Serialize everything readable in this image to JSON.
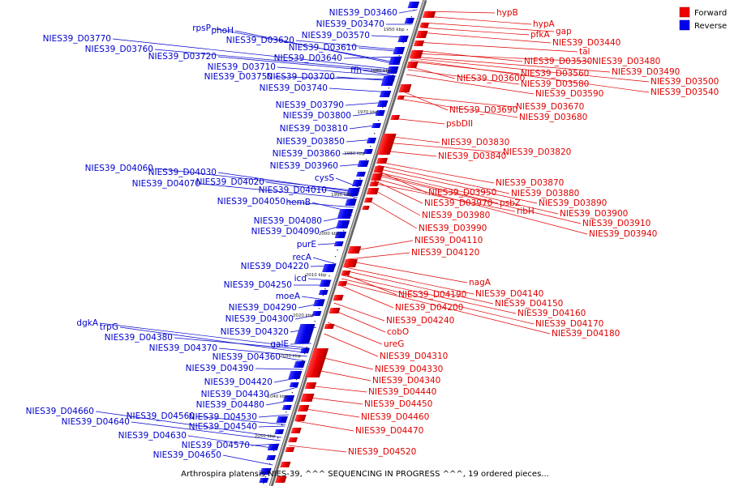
{
  "caption": "Arthrospira platensis NIES-39, ^^^ SEQUENCING IN PROGRESS ^^^, 19 ordered pieces...",
  "legend": {
    "forward": {
      "label": "Forward",
      "color": "#ee0000"
    },
    "reverse": {
      "label": "Reverse",
      "color": "#0000ee"
    }
  },
  "ticks": [
    "1950 kbp",
    "1960 kbp",
    "1970 kbp",
    "1980 kbp",
    "1990 kbp",
    "2000 kbp",
    "2010 kbp",
    "2020 kbp",
    "2030 kbp",
    "2040 kbp",
    "2050 kbp"
  ],
  "reverse_genes": [
    "NIES39_D03460",
    "NIES39_D03470",
    "NIES39_D03570",
    "NIES39_D03620",
    "NIES39_D03610",
    "NIES39_D03640",
    "NIES39_D03770",
    "NIES39_D03760",
    "NIES39_D03720",
    "NIES39_D03710",
    "NIES39_D03750",
    "NIES39_D03700",
    "NIES39_D03740",
    "NIES39_D03790",
    "NIES39_D03800",
    "NIES39_D03810",
    "NIES39_D03850",
    "NIES39_D03860",
    "NIES39_D03960",
    "NIES39_D04060",
    "NIES39_D04030",
    "NIES39_D04070",
    "NIES39_D04020",
    "NIES39_D04010",
    "NIES39_D04050",
    "NIES39_D04080",
    "NIES39_D04090",
    "NIES39_D04220",
    "NIES39_D04250",
    "NIES39_D04290",
    "NIES39_D04300",
    "NIES39_D04320",
    "NIES39_D04380",
    "NIES39_D04370",
    "NIES39_D04360",
    "NIES39_D04390",
    "NIES39_D04420",
    "NIES39_D04430",
    "NIES39_D04480",
    "NIES39_D04660",
    "NIES39_D04560",
    "NIES39_D04530",
    "NIES39_D04640",
    "NIES39_D04540",
    "NIES39_D04630",
    "NIES39_D04570",
    "NIES39_D04650",
    "rpsP",
    "phoH",
    "ffh",
    "cysS",
    "hemB",
    "purE",
    "recA",
    "icd",
    "moeA",
    "galE",
    "dgkA",
    "trpG"
  ],
  "forward_genes": [
    "hypB",
    "hypA",
    "gap",
    "pfkA",
    "NIES39_D03440",
    "tal",
    "NIES39_D03530",
    "NIES39_D03480",
    "NIES39_D03490",
    "NIES39_D03560",
    "NIES39_D03600",
    "NIES39_D03500",
    "NIES39_D03580",
    "NIES39_D03540",
    "NIES39_D03590",
    "NIES39_D03690",
    "NIES39_D03670",
    "NIES39_D03680",
    "psbDII",
    "NIES39_D03830",
    "NIES39_D03820",
    "NIES39_D03840",
    "NIES39_D03870",
    "NIES39_D03950",
    "NIES39_D03880",
    "psbZ",
    "NIES39_D03890",
    "NIES39_D03970",
    "ribH",
    "NIES39_D03900",
    "NIES39_D03980",
    "NIES39_D03910",
    "NIES39_D03990",
    "NIES39_D03940",
    "NIES39_D04110",
    "NIES39_D04120",
    "nagA",
    "NIES39_D04140",
    "NIES39_D04190",
    "NIES39_D04150",
    "NIES39_D04200",
    "NIES39_D04160",
    "NIES39_D04240",
    "NIES39_D04170",
    "NIES39_D04180",
    "cobO",
    "ureG",
    "NIES39_D04310",
    "NIES39_D04330",
    "NIES39_D04340",
    "NIES39_D04440",
    "NIES39_D04450",
    "NIES39_D04460",
    "NIES39_D04470",
    "NIES39_D04520"
  ]
}
